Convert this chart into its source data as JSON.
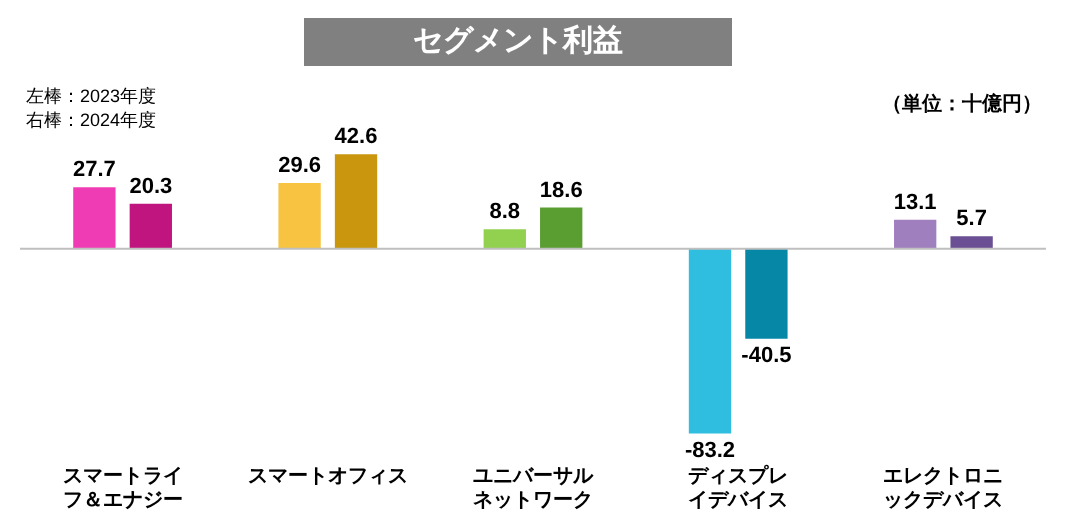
{
  "chart_data": {
    "type": "bar",
    "title": "セグメント利益",
    "categories": [
      "スマートライフ＆エナジー",
      "スマートオフィス",
      "ユニバーサルネットワーク",
      "ディスプレイデバイス",
      "エレクトロニックデバイス"
    ],
    "series": [
      {
        "colors": [
          "#f03cb4",
          "#f7c341",
          "#92d050",
          "#2fbde0",
          "#a07fbf"
        ],
        "values": [
          27.7,
          29.6,
          8.8,
          -83.2,
          13.1
        ]
      },
      {
        "colors": [
          "#c0157f",
          "#c9960e",
          "#5a9e32",
          "#0787a6",
          "#6b4f94"
        ],
        "values": [
          20.3,
          42.6,
          18.6,
          -40.5,
          5.7
        ]
      }
    ],
    "data_labels": true,
    "legend": false,
    "grid": false,
    "annotations": [
      "左棒：2023年度",
      "右棒：2024年度",
      "（単位：十億円）"
    ]
  }
}
